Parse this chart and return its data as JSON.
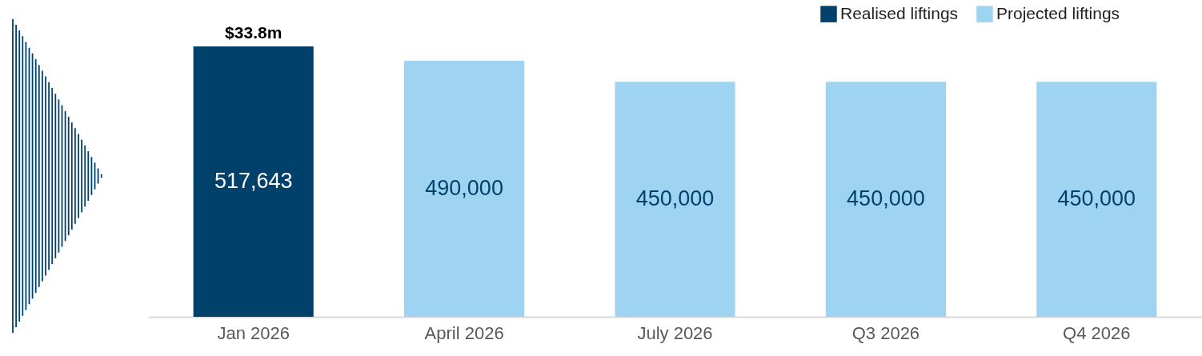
{
  "chart_data": {
    "type": "bar",
    "categories": [
      "Jan 2026",
      "April 2026",
      "July 2026",
      "Q3 2026",
      "Q4 2026"
    ],
    "series": [
      {
        "name": "Realised liftings",
        "color": "#00416b",
        "values": [
          517643,
          null,
          null,
          null,
          null
        ],
        "value_labels": [
          "517,643",
          null,
          null,
          null,
          null
        ]
      },
      {
        "name": "Projected liftings",
        "color": "#9ed3f2",
        "values": [
          null,
          490000,
          450000,
          450000,
          450000
        ],
        "value_labels": [
          null,
          "490,000",
          "450,000",
          "450,000",
          "450,000"
        ]
      }
    ],
    "annotations": [
      {
        "text": "$33.8m",
        "x": "Jan 2026",
        "y": 517643
      }
    ],
    "legend": "top right"
  }
}
